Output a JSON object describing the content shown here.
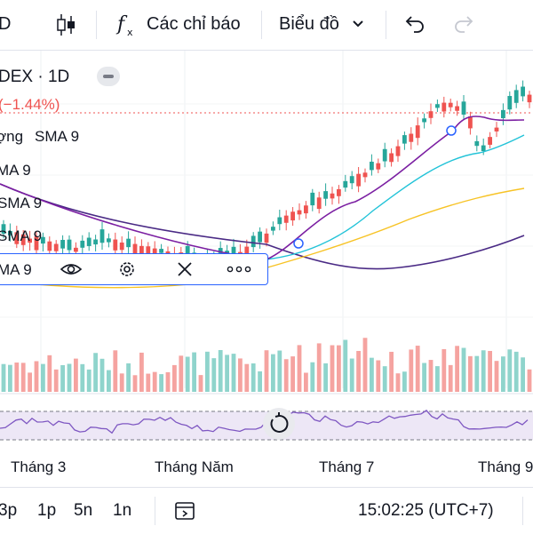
{
  "toolbar": {
    "partial_left": "D",
    "indicators_label": "Các chỉ báo",
    "chart_type_label": "Biểu đồ"
  },
  "legend": {
    "symbol_interval": "DEX · 1D",
    "change": "(−1.44%)",
    "volume_label": "ợng",
    "volume_sma": "SMA 9",
    "ma_lines": [
      "MA 9",
      "SMA 9",
      "SMA 9"
    ],
    "selected": "MA 9"
  },
  "colors": {
    "up": "#26a69a",
    "down": "#ef5350",
    "ma_purple": "#7b1fa2",
    "ma_cyan": "#22c3d8",
    "ma_yellow": "#f7c325",
    "ma_dark": "#4a2a85",
    "rsi_line": "#7e57c2",
    "accent": "#2962ff"
  },
  "x_axis": {
    "labels": [
      "Tháng 3",
      "Tháng Năm",
      "Tháng 7",
      "Tháng 9"
    ]
  },
  "bottom_bar": {
    "timeframes": [
      "3p",
      "1p",
      "5n",
      "1n"
    ],
    "clock": "15:02:25 (UTC+7)"
  },
  "icons": {
    "indicator": "function-icon",
    "dropdown": "chevron-down-icon",
    "undo": "undo-icon",
    "redo": "redo-icon",
    "candle": "candlestick-icon",
    "eye": "eye-icon",
    "settings": "gear-icon",
    "remove": "close-icon",
    "more": "more-icon",
    "reset": "reset-icon",
    "date_range": "calendar-goto-icon"
  }
}
